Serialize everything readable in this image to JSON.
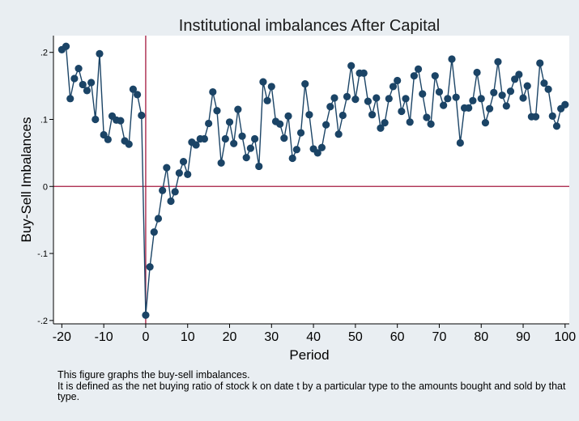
{
  "chart_data": {
    "type": "line",
    "title": "Institutional imbalances After Capital",
    "xlabel": "Period",
    "ylabel": "Buy-Sell Imbalances",
    "xlim": [
      -22,
      101
    ],
    "ylim": [
      -0.205,
      0.225
    ],
    "xticks": [
      -20,
      -10,
      0,
      10,
      20,
      30,
      40,
      50,
      60,
      70,
      80,
      90,
      100
    ],
    "xtick_labels": [
      "-20",
      "-10",
      "0",
      "10",
      "20",
      "30",
      "40",
      "50",
      "60",
      "70",
      "80",
      "90",
      "100"
    ],
    "yticks": [
      -0.2,
      -0.1,
      0,
      0.1,
      0.2
    ],
    "ytick_labels": [
      "-.2",
      "-.1",
      "0",
      ".1",
      ".2"
    ],
    "reference_lines": {
      "vertical_x": 0,
      "horizontal_y": 0,
      "color": "#a5193f"
    },
    "grid": false,
    "legend": "none",
    "series_color": "#1b4466",
    "marker": "filled-circle",
    "series": [
      {
        "x": [
          -20,
          -19,
          -18,
          -17,
          -16,
          -15,
          -14,
          -13,
          -12,
          -11,
          -10,
          -9,
          -8,
          -7,
          -6,
          -5,
          -4,
          -3,
          -2,
          -1,
          0,
          1,
          2,
          3,
          4,
          5,
          6,
          7,
          8,
          9,
          10,
          11,
          12,
          13,
          14,
          15,
          16,
          17,
          18,
          19,
          20,
          21,
          22,
          23,
          24,
          25,
          26,
          27,
          28,
          29,
          30,
          31,
          32,
          33,
          34,
          35,
          36,
          37,
          38,
          39,
          40,
          41,
          42,
          43,
          44,
          45,
          46,
          47,
          48,
          49,
          50,
          51,
          52,
          53,
          54,
          55,
          56,
          57,
          58,
          59,
          60,
          61,
          62,
          63,
          64,
          65,
          66,
          67,
          68,
          69,
          70,
          71,
          72,
          73,
          74,
          75,
          76,
          77,
          78,
          79,
          80,
          81,
          82,
          83,
          84,
          85,
          86,
          87,
          88,
          89,
          90,
          91,
          92,
          93,
          94,
          95,
          96,
          97,
          98,
          99,
          100
        ],
        "values": [
          0.204,
          0.209,
          0.131,
          0.161,
          0.176,
          0.152,
          0.143,
          0.155,
          0.1,
          0.198,
          0.077,
          0.07,
          0.105,
          0.099,
          0.098,
          0.068,
          0.063,
          0.145,
          0.137,
          0.106,
          -0.192,
          -0.12,
          -0.068,
          -0.048,
          -0.006,
          0.028,
          -0.022,
          -0.008,
          0.02,
          0.037,
          0.018,
          0.066,
          0.062,
          0.071,
          0.071,
          0.094,
          0.141,
          0.113,
          0.035,
          0.071,
          0.096,
          0.064,
          0.115,
          0.075,
          0.043,
          0.057,
          0.071,
          0.03,
          0.156,
          0.128,
          0.149,
          0.097,
          0.093,
          0.072,
          0.105,
          0.042,
          0.055,
          0.08,
          0.153,
          0.107,
          0.056,
          0.05,
          0.058,
          0.092,
          0.119,
          0.132,
          0.078,
          0.106,
          0.134,
          0.18,
          0.13,
          0.169,
          0.169,
          0.127,
          0.107,
          0.132,
          0.087,
          0.095,
          0.131,
          0.149,
          0.158,
          0.112,
          0.131,
          0.096,
          0.165,
          0.175,
          0.138,
          0.103,
          0.093,
          0.165,
          0.141,
          0.121,
          0.131,
          0.19,
          0.133,
          0.065,
          0.117,
          0.117,
          0.128,
          0.17,
          0.131,
          0.095,
          0.116,
          0.14,
          0.186,
          0.136,
          0.12,
          0.142,
          0.16,
          0.167,
          0.132,
          0.15,
          0.104,
          0.104,
          0.184,
          0.154,
          0.145,
          0.105,
          0.09,
          0.116,
          0.122
        ]
      }
    ]
  },
  "notes": {
    "line1": "This figure graphs the buy-sell imbalances.",
    "line2": "It is defined as the net buying ratio of stock k on date t by a particular type to the amounts bought and sold by that type."
  }
}
